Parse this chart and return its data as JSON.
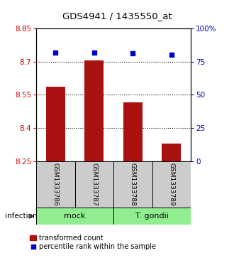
{
  "title": "GDS4941 / 1435550_at",
  "samples": [
    "GSM1333786",
    "GSM1333787",
    "GSM1333788",
    "GSM1333789"
  ],
  "bar_values": [
    8.585,
    8.705,
    8.515,
    8.33
  ],
  "percentile_values": [
    82,
    82,
    81,
    80
  ],
  "ylim_left": [
    8.25,
    8.85
  ],
  "ylim_right": [
    0,
    100
  ],
  "yticks_left": [
    8.25,
    8.4,
    8.55,
    8.7,
    8.85
  ],
  "yticks_right": [
    0,
    25,
    50,
    75,
    100
  ],
  "ytick_labels_right": [
    "0",
    "25",
    "50",
    "75",
    "100%"
  ],
  "bar_color": "#aa1111",
  "dot_color": "#0000cc",
  "bar_width": 0.5,
  "annotation_label": "infection",
  "legend_bar_label": "transformed count",
  "legend_dot_label": "percentile rank within the sample",
  "label_area_color": "#cccccc",
  "label_area_color2": "#90ee90",
  "group_info": [
    {
      "label": "mock",
      "start": 0,
      "end": 2
    },
    {
      "label": "T. gondii",
      "start": 2,
      "end": 4
    }
  ]
}
